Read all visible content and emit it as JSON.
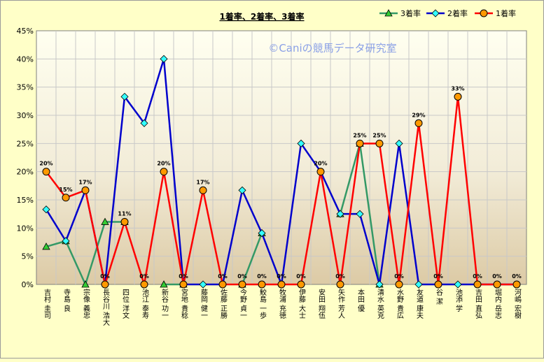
{
  "chart_data": {
    "type": "line",
    "title": "1着率、2着率、3着率",
    "watermark": "©Caniの競馬データ研究室",
    "ylim": [
      0,
      45
    ],
    "y_ticks": [
      "0%",
      "5%",
      "10%",
      "15%",
      "20%",
      "25%",
      "30%",
      "35%",
      "40%",
      "45%"
    ],
    "categories": [
      "吉村 圭司",
      "寺島 良",
      "宗像 義忠",
      "長谷川 浩大",
      "四位 洋文",
      "池江 泰寿",
      "新谷 功一",
      "宮地 貴稔",
      "藤岡 健一",
      "佐藤 正勝",
      "今野 貞一",
      "鮫島 一歩",
      "牧浦 充徳",
      "伊藤 大士",
      "安田 翔伍",
      "矢作 芳人",
      "本田 優",
      "清水 英克",
      "水野 貴広",
      "友道 康夫",
      "谷 潔",
      "池添 学",
      "吉田 直弘",
      "堀内 岳志",
      "河嶋 宏樹"
    ],
    "legend": [
      "3着率",
      "2着率",
      "1着率"
    ],
    "series": [
      {
        "name": "3着率",
        "color": "#339966",
        "marker": "triangle",
        "values": [
          6.7,
          7.7,
          0,
          11.1,
          11.1,
          null,
          0,
          0,
          null,
          null,
          0,
          9.1,
          null,
          null,
          null,
          12.5,
          25,
          0,
          null,
          null,
          null,
          null,
          null,
          null,
          null
        ]
      },
      {
        "name": "2着率",
        "color": "#0000cc",
        "marker": "diamond",
        "values": [
          13.3,
          7.7,
          16.7,
          0,
          33.3,
          28.6,
          40,
          0,
          0,
          0,
          16.7,
          9.1,
          0,
          25,
          20,
          12.5,
          12.5,
          0,
          25,
          0,
          0,
          0,
          0,
          0,
          0
        ]
      },
      {
        "name": "1着率",
        "color": "#ff0000",
        "marker": "circle",
        "values": [
          20,
          15.4,
          16.7,
          0,
          11.1,
          0,
          20,
          0,
          16.7,
          0,
          0,
          0,
          0,
          0,
          20,
          0,
          25,
          25,
          0,
          28.6,
          0,
          33.3,
          0,
          0,
          0
        ]
      }
    ],
    "data_labels": [
      {
        "index": 0,
        "value": 20,
        "text": "20%"
      },
      {
        "index": 1,
        "value": 15.4,
        "text": "15%"
      },
      {
        "index": 2,
        "value": 16.7,
        "text": "17%"
      },
      {
        "index": 3,
        "value": 0,
        "text": "0%"
      },
      {
        "index": 4,
        "value": 11.1,
        "text": "11%"
      },
      {
        "index": 5,
        "value": 0,
        "text": "0%"
      },
      {
        "index": 6,
        "value": 20,
        "text": "20%"
      },
      {
        "index": 7,
        "value": 0,
        "text": "0%"
      },
      {
        "index": 8,
        "value": 16.7,
        "text": "17%"
      },
      {
        "index": 9,
        "value": 0,
        "text": "0%"
      },
      {
        "index": 10,
        "value": 0,
        "text": "0%"
      },
      {
        "index": 11,
        "value": 0,
        "text": "0%"
      },
      {
        "index": 12,
        "value": 0,
        "text": "0%"
      },
      {
        "index": 13,
        "value": 0,
        "text": "0%"
      },
      {
        "index": 14,
        "value": 20,
        "text": "20%"
      },
      {
        "index": 15,
        "value": 0,
        "text": "0%"
      },
      {
        "index": 16,
        "value": 25,
        "text": "25%"
      },
      {
        "index": 17,
        "value": 25,
        "text": "25%"
      },
      {
        "index": 18,
        "value": 0,
        "text": "0%"
      },
      {
        "index": 19,
        "value": 28.6,
        "text": "29%"
      },
      {
        "index": 20,
        "value": 0,
        "text": "0%"
      },
      {
        "index": 21,
        "value": 33.3,
        "text": "33%"
      },
      {
        "index": 22,
        "value": 0,
        "text": "0%"
      },
      {
        "index": 23,
        "value": 0,
        "text": "0%"
      },
      {
        "index": 24,
        "value": 0,
        "text": "0%"
      }
    ],
    "grid": true,
    "legend_position": "top-right"
  }
}
